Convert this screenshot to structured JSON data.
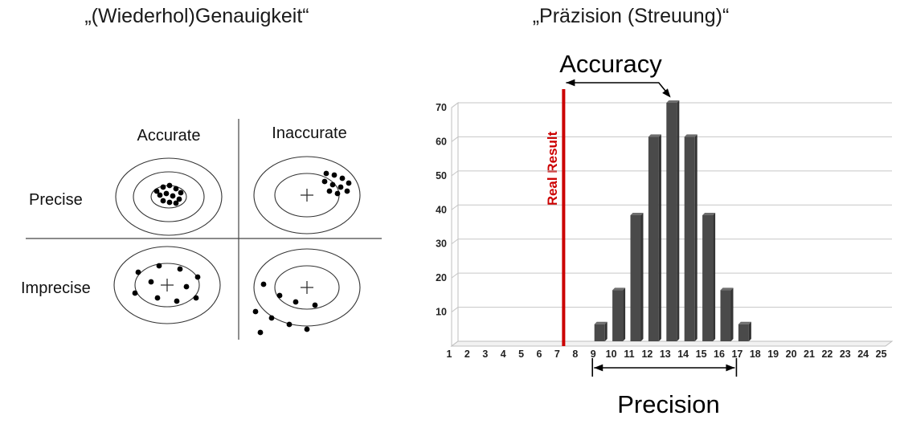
{
  "left_panel": {
    "title": "„(Wiederhol)Genauigkeit“",
    "col_labels": [
      "Accurate",
      "Inaccurate"
    ],
    "row_labels": [
      "Precise",
      "Imprecise"
    ],
    "quadrants": [
      {
        "name": "precise-accurate",
        "rings": 3,
        "show_plus": false,
        "dots": [
          [
            -15,
            -7
          ],
          [
            -7,
            -12
          ],
          [
            1,
            -14
          ],
          [
            9,
            -10
          ],
          [
            15,
            -5
          ],
          [
            -11,
            -2
          ],
          [
            -3,
            -4
          ],
          [
            5,
            -1
          ],
          [
            13,
            3
          ],
          [
            -7,
            5
          ],
          [
            1,
            7
          ],
          [
            9,
            8
          ]
        ]
      },
      {
        "name": "precise-inaccurate",
        "rings": 2,
        "show_plus": true,
        "dots": [
          [
            24,
            -27
          ],
          [
            34,
            -25
          ],
          [
            44,
            -21
          ],
          [
            52,
            -15
          ],
          [
            22,
            -17
          ],
          [
            32,
            -13
          ],
          [
            42,
            -10
          ],
          [
            50,
            -5
          ],
          [
            28,
            -5
          ],
          [
            38,
            -2
          ]
        ]
      },
      {
        "name": "imprecise-accurate",
        "rings": 2,
        "show_plus": true,
        "dots": [
          [
            -36,
            -16
          ],
          [
            -10,
            -24
          ],
          [
            16,
            -20
          ],
          [
            38,
            -10
          ],
          [
            -20,
            -4
          ],
          [
            24,
            2
          ],
          [
            -40,
            10
          ],
          [
            -12,
            16
          ],
          [
            12,
            20
          ],
          [
            36,
            16
          ]
        ]
      },
      {
        "name": "imprecise-inaccurate",
        "rings": 2,
        "show_plus": true,
        "dots": [
          [
            -54,
            -4
          ],
          [
            -34,
            10
          ],
          [
            -14,
            18
          ],
          [
            10,
            22
          ],
          [
            -64,
            30
          ],
          [
            -44,
            38
          ],
          [
            -22,
            46
          ],
          [
            0,
            52
          ],
          [
            -58,
            56
          ]
        ]
      }
    ]
  },
  "right_panel": {
    "title": "„Präzision (Streuung)“",
    "accuracy_label": "Accuracy",
    "precision_label": "Precision",
    "real_result_label": "Real Result",
    "real_result_color": "#cc0000"
  },
  "chart_data": {
    "type": "bar",
    "title": "",
    "categories": [
      1,
      2,
      3,
      4,
      5,
      6,
      7,
      8,
      9,
      10,
      11,
      12,
      13,
      14,
      15,
      16,
      17,
      18,
      19,
      20,
      21,
      22,
      23,
      24,
      25
    ],
    "values": [
      0,
      0,
      0,
      0,
      0,
      0,
      0,
      0,
      5,
      15,
      37,
      60,
      70,
      60,
      37,
      15,
      5,
      0,
      0,
      0,
      0,
      0,
      0,
      0,
      0
    ],
    "xlabel": "",
    "ylabel": "",
    "ylim": [
      0,
      70
    ],
    "yticks": [
      70,
      60,
      50,
      40,
      30,
      20,
      10
    ],
    "grid": true,
    "legend": false,
    "bar_color": "#4a4a4a",
    "real_result_x": 7,
    "accuracy_span": [
      7,
      13
    ],
    "precision_span": [
      8.6,
      16.6
    ],
    "annotations": [
      "Accuracy",
      "Precision",
      "Real Result"
    ]
  }
}
